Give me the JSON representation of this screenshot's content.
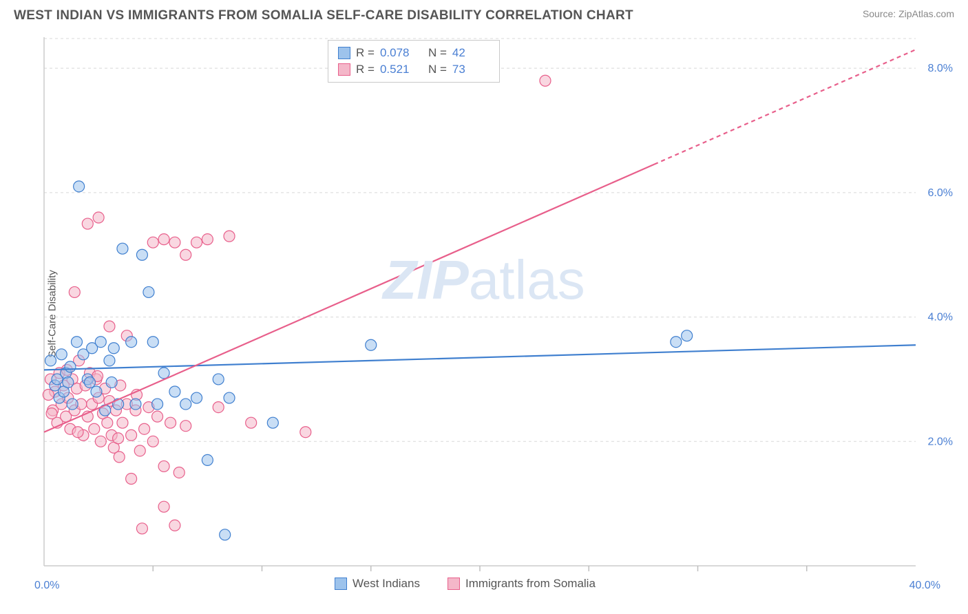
{
  "header": {
    "title": "WEST INDIAN VS IMMIGRANTS FROM SOMALIA SELF-CARE DISABILITY CORRELATION CHART",
    "source_label": "Source:",
    "source_name": "ZipAtlas.com"
  },
  "watermark": {
    "prefix": "ZIP",
    "suffix": "atlas"
  },
  "chart": {
    "type": "scatter",
    "ylabel": "Self-Care Disability",
    "xlim": [
      0,
      40
    ],
    "ylim": [
      0,
      8.5
    ],
    "x_axis_labels": {
      "min": "0.0%",
      "max": "40.0%"
    },
    "y_ticks": [
      2.0,
      4.0,
      6.0,
      8.0
    ],
    "y_tick_labels": [
      "2.0%",
      "4.0%",
      "6.0%",
      "8.0%"
    ],
    "background_color": "#ffffff",
    "grid_color": "#d8d8d8",
    "axis_color": "#cccccc",
    "tick_color": "#bfbfbf",
    "x_minor_ticks": [
      5,
      10,
      15,
      20,
      25,
      30,
      35
    ],
    "marker_radius": 8,
    "marker_opacity": 0.55,
    "series": [
      {
        "name": "West Indians",
        "color_fill": "#9dc3ec",
        "color_stroke": "#3f7fcf",
        "R": "0.078",
        "N": "42",
        "trend": {
          "x0": 0,
          "y0": 3.15,
          "x1": 40,
          "y1": 3.55,
          "dashed_from_x": null
        },
        "points": [
          [
            0.3,
            3.3
          ],
          [
            0.5,
            2.9
          ],
          [
            0.6,
            3.0
          ],
          [
            0.7,
            2.7
          ],
          [
            0.8,
            3.4
          ],
          [
            0.9,
            2.8
          ],
          [
            1.0,
            3.1
          ],
          [
            1.2,
            3.2
          ],
          [
            1.3,
            2.6
          ],
          [
            1.5,
            3.6
          ],
          [
            1.6,
            6.1
          ],
          [
            1.8,
            3.4
          ],
          [
            2.0,
            3.0
          ],
          [
            2.2,
            3.5
          ],
          [
            2.4,
            2.8
          ],
          [
            2.6,
            3.6
          ],
          [
            2.8,
            2.5
          ],
          [
            3.0,
            3.3
          ],
          [
            3.2,
            3.5
          ],
          [
            3.4,
            2.6
          ],
          [
            3.6,
            5.1
          ],
          [
            4.0,
            3.6
          ],
          [
            4.2,
            2.6
          ],
          [
            4.5,
            5.0
          ],
          [
            4.8,
            4.4
          ],
          [
            5.0,
            3.6
          ],
          [
            5.2,
            2.6
          ],
          [
            5.5,
            3.1
          ],
          [
            6.0,
            2.8
          ],
          [
            6.5,
            2.6
          ],
          [
            7.0,
            2.7
          ],
          [
            7.5,
            1.7
          ],
          [
            8.0,
            3.0
          ],
          [
            8.3,
            0.5
          ],
          [
            8.5,
            2.7
          ],
          [
            10.5,
            2.3
          ],
          [
            15.0,
            3.55
          ],
          [
            29.0,
            3.6
          ],
          [
            29.5,
            3.7
          ],
          [
            1.1,
            2.95
          ],
          [
            2.1,
            2.95
          ],
          [
            3.1,
            2.95
          ]
        ]
      },
      {
        "name": "Immigrants from Somalia",
        "color_fill": "#f4b7c9",
        "color_stroke": "#e85f8b",
        "R": "0.521",
        "N": "73",
        "trend": {
          "x0": 0,
          "y0": 2.15,
          "x1": 40,
          "y1": 8.3,
          "dashed_from_x": 28
        },
        "points": [
          [
            0.3,
            3.0
          ],
          [
            0.4,
            2.5
          ],
          [
            0.5,
            2.8
          ],
          [
            0.6,
            2.3
          ],
          [
            0.7,
            3.1
          ],
          [
            0.8,
            2.6
          ],
          [
            0.9,
            2.9
          ],
          [
            1.0,
            2.4
          ],
          [
            1.1,
            2.7
          ],
          [
            1.2,
            2.2
          ],
          [
            1.3,
            3.0
          ],
          [
            1.4,
            2.5
          ],
          [
            1.5,
            2.85
          ],
          [
            1.6,
            3.3
          ],
          [
            1.7,
            2.6
          ],
          [
            1.8,
            2.1
          ],
          [
            1.9,
            2.9
          ],
          [
            2.0,
            2.4
          ],
          [
            2.1,
            3.1
          ],
          [
            2.2,
            2.6
          ],
          [
            2.3,
            2.2
          ],
          [
            2.4,
            3.0
          ],
          [
            2.5,
            2.7
          ],
          [
            2.6,
            2.0
          ],
          [
            2.7,
            2.45
          ],
          [
            2.8,
            2.85
          ],
          [
            2.9,
            2.3
          ],
          [
            3.0,
            2.65
          ],
          [
            3.1,
            2.1
          ],
          [
            3.2,
            1.9
          ],
          [
            3.3,
            2.5
          ],
          [
            3.4,
            2.05
          ],
          [
            3.5,
            2.9
          ],
          [
            3.6,
            2.3
          ],
          [
            3.8,
            2.6
          ],
          [
            4.0,
            2.1
          ],
          [
            4.2,
            2.5
          ],
          [
            4.4,
            1.85
          ],
          [
            4.6,
            2.2
          ],
          [
            4.8,
            2.55
          ],
          [
            5.0,
            2.0
          ],
          [
            5.2,
            2.4
          ],
          [
            5.5,
            1.6
          ],
          [
            5.8,
            2.3
          ],
          [
            6.0,
            0.65
          ],
          [
            6.2,
            1.5
          ],
          [
            6.5,
            2.25
          ],
          [
            1.4,
            4.4
          ],
          [
            2.0,
            5.5
          ],
          [
            2.5,
            5.6
          ],
          [
            3.0,
            3.85
          ],
          [
            3.8,
            3.7
          ],
          [
            4.0,
            1.4
          ],
          [
            4.5,
            0.6
          ],
          [
            5.0,
            5.2
          ],
          [
            5.5,
            5.25
          ],
          [
            5.5,
            0.95
          ],
          [
            6.0,
            5.2
          ],
          [
            6.5,
            5.0
          ],
          [
            7.0,
            5.2
          ],
          [
            7.5,
            5.25
          ],
          [
            8.0,
            2.55
          ],
          [
            8.5,
            5.3
          ],
          [
            9.5,
            2.3
          ],
          [
            12.0,
            2.15
          ],
          [
            23.0,
            7.8
          ],
          [
            0.2,
            2.75
          ],
          [
            0.35,
            2.45
          ],
          [
            1.05,
            3.15
          ],
          [
            1.55,
            2.15
          ],
          [
            2.45,
            3.05
          ],
          [
            3.45,
            1.75
          ],
          [
            4.25,
            2.75
          ]
        ]
      }
    ],
    "stats_legend_labels": {
      "r": "R =",
      "n": "N ="
    },
    "bottom_legend": [
      "West Indians",
      "Immigrants from Somalia"
    ]
  }
}
